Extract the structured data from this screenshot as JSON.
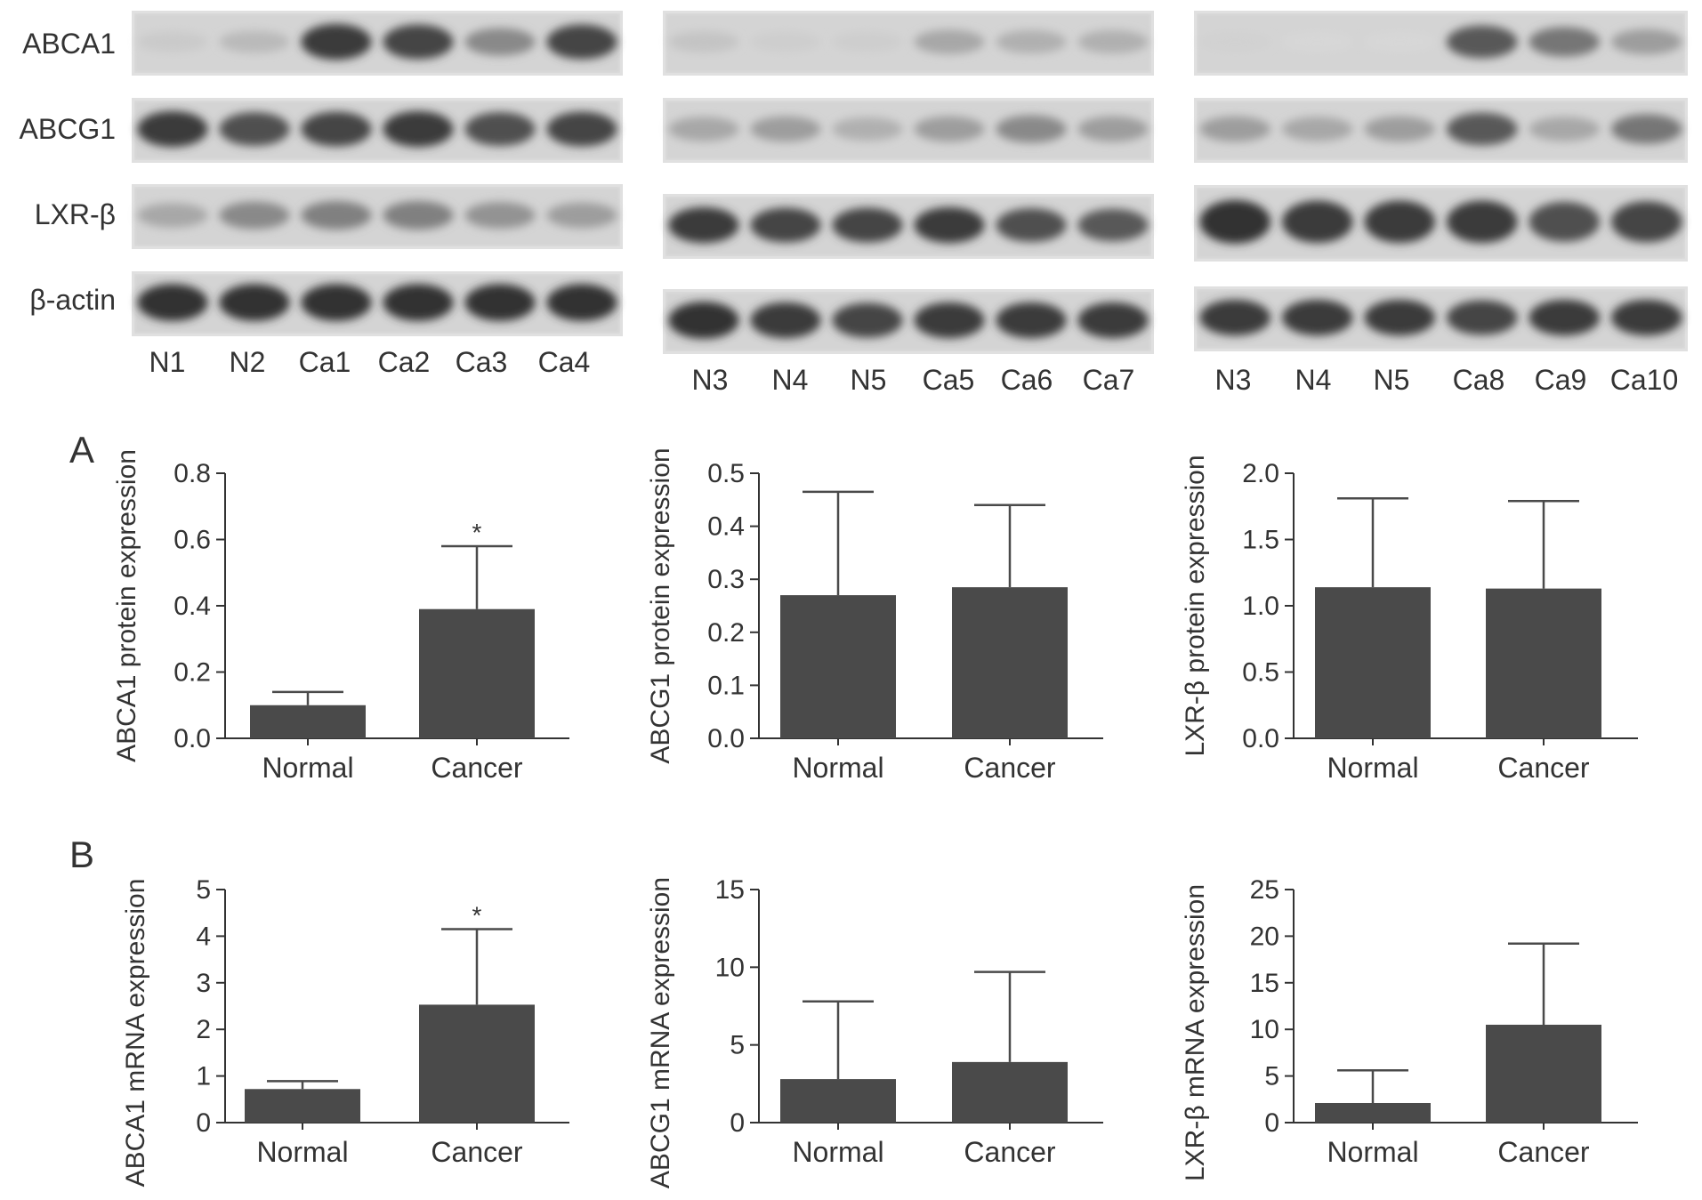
{
  "blots": [
    {
      "rows": [
        {
          "label": "ABCA1",
          "intensities": [
            0.12,
            0.2,
            0.85,
            0.8,
            0.45,
            0.8
          ]
        },
        {
          "label": "ABCG1",
          "intensities": [
            0.85,
            0.75,
            0.8,
            0.85,
            0.75,
            0.8
          ]
        },
        {
          "label": "LXR-β",
          "intensities": [
            0.3,
            0.45,
            0.5,
            0.5,
            0.4,
            0.35
          ]
        },
        {
          "label": "β-actin",
          "intensities": [
            0.9,
            0.9,
            0.9,
            0.9,
            0.9,
            0.9
          ]
        }
      ],
      "lanes": [
        "N1",
        "N2",
        "Ca1",
        "Ca2",
        "Ca3",
        "Ca4"
      ]
    },
    {
      "rows": [
        {
          "intensities": [
            0.15,
            0.1,
            0.1,
            0.3,
            0.25,
            0.25
          ]
        },
        {
          "intensities": [
            0.3,
            0.35,
            0.25,
            0.35,
            0.45,
            0.35
          ]
        },
        {
          "intensities": [
            0.85,
            0.8,
            0.8,
            0.85,
            0.75,
            0.7
          ]
        },
        {
          "intensities": [
            0.9,
            0.85,
            0.8,
            0.85,
            0.85,
            0.85
          ]
        }
      ],
      "lanes": [
        "N3",
        "N4",
        "N5",
        "Ca5",
        "Ca6",
        "Ca7"
      ]
    },
    {
      "rows": [
        {
          "intensities": [
            0.08,
            0.05,
            0.05,
            0.7,
            0.55,
            0.35
          ]
        },
        {
          "intensities": [
            0.35,
            0.3,
            0.35,
            0.7,
            0.3,
            0.55
          ]
        },
        {
          "intensities": [
            0.9,
            0.85,
            0.85,
            0.85,
            0.75,
            0.8
          ]
        },
        {
          "intensities": [
            0.85,
            0.85,
            0.85,
            0.8,
            0.85,
            0.85
          ]
        }
      ],
      "lanes": [
        "N3",
        "N4",
        "N5",
        "Ca8",
        "Ca9",
        "Ca10"
      ]
    }
  ],
  "panel_letters": [
    "A",
    "B"
  ],
  "bar_color": "#4a4a4a",
  "chart_data": [
    {
      "type": "bar",
      "panel": "A",
      "ylabel": "ABCA1 protein expression",
      "categories": [
        "Normal",
        "Cancer"
      ],
      "values": [
        0.1,
        0.39
      ],
      "errors": [
        0.04,
        0.19
      ],
      "ylim": [
        0,
        0.8
      ],
      "yticks": [
        "0.0",
        "0.2",
        "0.4",
        "0.6",
        "0.8"
      ],
      "significance": [
        "",
        "*"
      ]
    },
    {
      "type": "bar",
      "panel": "A",
      "ylabel": "ABCG1 protein expression",
      "categories": [
        "Normal",
        "Cancer"
      ],
      "values": [
        0.27,
        0.285
      ],
      "errors": [
        0.195,
        0.155
      ],
      "ylim": [
        0,
        0.5
      ],
      "yticks": [
        "0.0",
        "0.1",
        "0.2",
        "0.3",
        "0.4",
        "0.5"
      ],
      "significance": [
        "",
        ""
      ]
    },
    {
      "type": "bar",
      "panel": "A",
      "ylabel": "LXR-β protein expression",
      "categories": [
        "Normal",
        "Cancer"
      ],
      "values": [
        1.14,
        1.13
      ],
      "errors": [
        0.67,
        0.66
      ],
      "ylim": [
        0,
        2.0
      ],
      "yticks": [
        "0.0",
        "0.5",
        "1.0",
        "1.5",
        "2.0"
      ],
      "significance": [
        "",
        ""
      ]
    },
    {
      "type": "bar",
      "panel": "B",
      "ylabel": "ABCA1 mRNA expression",
      "categories": [
        "Normal",
        "Cancer"
      ],
      "values": [
        0.72,
        2.53
      ],
      "errors": [
        0.17,
        1.62
      ],
      "ylim": [
        0,
        5
      ],
      "yticks": [
        "0",
        "1",
        "2",
        "3",
        "4",
        "5"
      ],
      "significance": [
        "",
        "*"
      ]
    },
    {
      "type": "bar",
      "panel": "B",
      "ylabel": "ABCG1 mRNA expression",
      "categories": [
        "Normal",
        "Cancer"
      ],
      "values": [
        2.8,
        3.9
      ],
      "errors": [
        5.0,
        5.8
      ],
      "ylim": [
        0,
        15
      ],
      "yticks": [
        "0",
        "5",
        "10",
        "15"
      ],
      "significance": [
        "",
        ""
      ]
    },
    {
      "type": "bar",
      "panel": "B",
      "ylabel": "LXR-β mRNA expression",
      "categories": [
        "Normal",
        "Cancer"
      ],
      "values": [
        2.1,
        10.5
      ],
      "errors": [
        3.5,
        8.7
      ],
      "ylim": [
        0,
        25
      ],
      "yticks": [
        "0",
        "5",
        "10",
        "15",
        "20",
        "25"
      ],
      "significance": [
        "",
        ""
      ]
    }
  ]
}
